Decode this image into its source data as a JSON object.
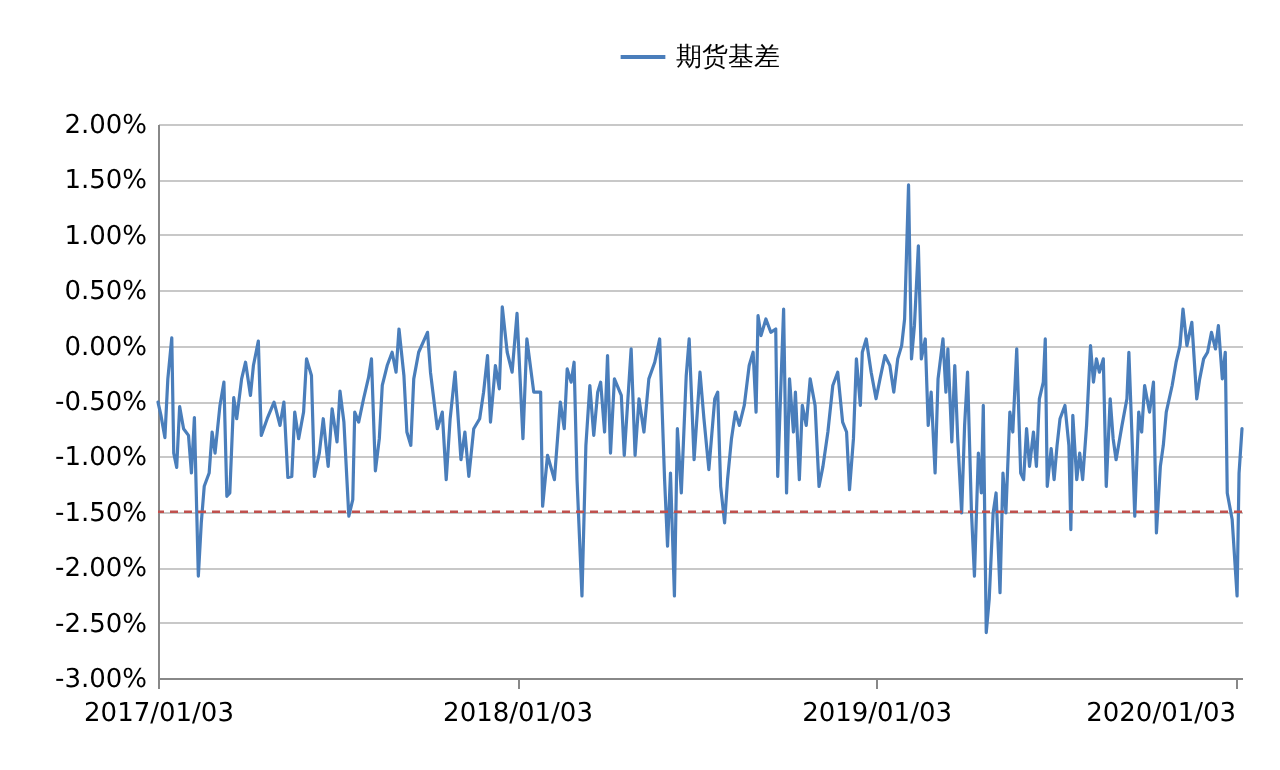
{
  "chart_data": {
    "type": "line",
    "x": [
      "2017-01-03",
      "2017-01-06",
      "2017-01-10",
      "2017-01-13",
      "2017-01-17",
      "2017-01-19",
      "2017-01-22",
      "2017-01-25",
      "2017-01-29",
      "2017-02-03",
      "2017-02-06",
      "2017-02-09",
      "2017-02-13",
      "2017-02-16",
      "2017-02-19",
      "2017-02-24",
      "2017-02-27",
      "2017-03-02",
      "2017-03-07",
      "2017-03-11",
      "2017-03-14",
      "2017-03-17",
      "2017-03-21",
      "2017-03-24",
      "2017-03-29",
      "2017-04-02",
      "2017-04-07",
      "2017-04-10",
      "2017-04-15",
      "2017-04-18",
      "2017-04-24",
      "2017-05-01",
      "2017-05-07",
      "2017-05-11",
      "2017-05-15",
      "2017-05-19",
      "2017-05-22",
      "2017-05-26",
      "2017-05-31",
      "2017-06-03",
      "2017-06-08",
      "2017-06-11",
      "2017-06-16",
      "2017-06-20",
      "2017-06-25",
      "2017-06-29",
      "2017-07-04",
      "2017-07-07",
      "2017-07-11",
      "2017-07-16",
      "2017-07-20",
      "2017-07-22",
      "2017-07-26",
      "2017-07-31",
      "2017-08-05",
      "2017-08-08",
      "2017-08-12",
      "2017-08-16",
      "2017-08-19",
      "2017-08-24",
      "2017-08-29",
      "2017-09-02",
      "2017-09-05",
      "2017-09-10",
      "2017-09-13",
      "2017-09-17",
      "2017-09-20",
      "2017-09-25",
      "2017-10-04",
      "2017-10-07",
      "2017-10-14",
      "2017-10-19",
      "2017-10-23",
      "2017-10-27",
      "2017-11-01",
      "2017-11-07",
      "2017-11-11",
      "2017-11-15",
      "2017-11-20",
      "2017-11-26",
      "2017-11-30",
      "2017-12-04",
      "2017-12-07",
      "2017-12-12",
      "2017-12-16",
      "2017-12-19",
      "2017-12-24",
      "2017-12-29",
      "2018-01-03",
      "2018-01-09",
      "2018-01-13",
      "2018-01-20",
      "2018-01-27",
      "2018-01-29",
      "2018-02-03",
      "2018-02-10",
      "2018-02-16",
      "2018-02-20",
      "2018-02-23",
      "2018-02-27",
      "2018-03-02",
      "2018-03-05",
      "2018-03-10",
      "2018-03-14",
      "2018-03-18",
      "2018-03-22",
      "2018-03-26",
      "2018-03-29",
      "2018-04-02",
      "2018-04-05",
      "2018-04-08",
      "2018-04-12",
      "2018-04-19",
      "2018-04-22",
      "2018-04-29",
      "2018-05-03",
      "2018-05-07",
      "2018-05-12",
      "2018-05-17",
      "2018-05-23",
      "2018-05-28",
      "2018-06-02",
      "2018-06-05",
      "2018-06-08",
      "2018-06-12",
      "2018-06-15",
      "2018-06-19",
      "2018-06-24",
      "2018-06-27",
      "2018-07-02",
      "2018-07-08",
      "2018-07-12",
      "2018-07-17",
      "2018-07-23",
      "2018-07-26",
      "2018-07-29",
      "2018-08-02",
      "2018-08-05",
      "2018-08-09",
      "2018-08-13",
      "2018-08-17",
      "2018-08-22",
      "2018-08-27",
      "2018-08-31",
      "2018-09-03",
      "2018-09-05",
      "2018-09-08",
      "2018-09-13",
      "2018-09-18",
      "2018-09-23",
      "2018-09-25",
      "2018-09-28",
      "2018-10-01",
      "2018-10-04",
      "2018-10-07",
      "2018-10-11",
      "2018-10-13",
      "2018-10-17",
      "2018-10-20",
      "2018-10-24",
      "2018-10-28",
      "2018-11-02",
      "2018-11-06",
      "2018-11-10",
      "2018-11-15",
      "2018-11-20",
      "2018-11-25",
      "2018-11-30",
      "2018-12-04",
      "2018-12-07",
      "2018-12-11",
      "2018-12-14",
      "2018-12-18",
      "2018-12-20",
      "2018-12-24",
      "2018-12-29",
      "2019-01-03",
      "2019-01-07",
      "2019-01-12",
      "2019-01-17",
      "2019-01-21",
      "2019-01-25",
      "2019-01-29",
      "2019-02-01",
      "2019-02-05",
      "2019-02-08",
      "2019-02-11",
      "2019-02-15",
      "2019-02-18",
      "2019-02-22",
      "2019-02-25",
      "2019-02-28",
      "2019-03-04",
      "2019-03-07",
      "2019-03-12",
      "2019-03-15",
      "2019-03-17",
      "2019-03-21",
      "2019-03-24",
      "2019-03-27",
      "2019-03-31",
      "2019-04-03",
      "2019-04-06",
      "2019-04-10",
      "2019-04-13",
      "2019-04-17",
      "2019-04-20",
      "2019-04-22",
      "2019-04-25",
      "2019-04-28",
      "2019-05-02",
      "2019-05-05",
      "2019-05-09",
      "2019-05-12",
      "2019-05-15",
      "2019-05-19",
      "2019-05-22",
      "2019-05-26",
      "2019-05-30",
      "2019-06-02",
      "2019-06-05",
      "2019-06-08",
      "2019-06-12",
      "2019-06-15",
      "2019-06-18",
      "2019-06-22",
      "2019-06-24",
      "2019-06-26",
      "2019-06-30",
      "2019-07-03",
      "2019-07-06",
      "2019-07-09",
      "2019-07-14",
      "2019-07-18",
      "2019-07-20",
      "2019-07-22",
      "2019-07-26",
      "2019-07-29",
      "2019-08-01",
      "2019-08-05",
      "2019-08-09",
      "2019-08-12",
      "2019-08-15",
      "2019-08-18",
      "2019-08-22",
      "2019-08-25",
      "2019-08-29",
      "2019-09-01",
      "2019-09-04",
      "2019-09-10",
      "2019-09-15",
      "2019-09-17",
      "2019-09-20",
      "2019-09-23",
      "2019-09-27",
      "2019-09-30",
      "2019-10-03",
      "2019-10-08",
      "2019-10-12",
      "2019-10-15",
      "2019-10-19",
      "2019-10-22",
      "2019-10-25",
      "2019-10-31",
      "2019-11-04",
      "2019-11-08",
      "2019-11-11",
      "2019-11-15",
      "2019-11-20",
      "2019-11-25",
      "2019-11-28",
      "2019-12-02",
      "2019-12-06",
      "2019-12-10",
      "2019-12-14",
      "2019-12-17",
      "2019-12-21",
      "2019-12-24",
      "2019-12-26",
      "2019-12-31",
      "2020-01-05",
      "2020-01-07",
      "2020-01-10"
    ],
    "series": [
      {
        "name": "期货基差",
        "color": "#4a7ebb",
        "values": [
          -0.51,
          -0.63,
          -0.83,
          -0.3,
          0.07,
          -0.97,
          -1.1,
          -0.55,
          -0.75,
          -0.81,
          -1.15,
          -0.65,
          -2.08,
          -1.6,
          -1.27,
          -1.15,
          -0.78,
          -0.97,
          -0.54,
          -0.33,
          -1.36,
          -1.33,
          -0.47,
          -0.66,
          -0.3,
          -0.15,
          -0.45,
          -0.18,
          0.04,
          -0.81,
          -0.66,
          -0.51,
          -0.72,
          -0.51,
          -1.19,
          -1.18,
          -0.6,
          -0.84,
          -0.6,
          -0.12,
          -0.27,
          -1.18,
          -0.97,
          -0.66,
          -1.09,
          -0.57,
          -0.87,
          -0.41,
          -0.69,
          -1.54,
          -1.39,
          -0.6,
          -0.69,
          -0.48,
          -0.29,
          -0.12,
          -1.13,
          -0.84,
          -0.36,
          -0.18,
          -0.06,
          -0.24,
          0.15,
          -0.27,
          -0.78,
          -0.9,
          -0.3,
          -0.06,
          0.12,
          -0.24,
          -0.75,
          -0.6,
          -1.21,
          -0.66,
          -0.24,
          -1.03,
          -0.78,
          -1.18,
          -0.75,
          -0.66,
          -0.42,
          -0.09,
          -0.69,
          -0.18,
          -0.39,
          0.35,
          -0.06,
          -0.24,
          0.29,
          -0.84,
          0.06,
          -0.42,
          -0.42,
          -1.45,
          -0.99,
          -1.21,
          -0.51,
          -0.75,
          -0.21,
          -0.33,
          -0.15,
          -1.21,
          -2.26,
          -0.9,
          -0.36,
          -0.81,
          -0.42,
          -0.33,
          -0.78,
          -0.09,
          -0.97,
          -0.3,
          -0.45,
          -0.99,
          -0.03,
          -0.99,
          -0.48,
          -0.78,
          -0.3,
          -0.15,
          0.06,
          -1.21,
          -1.81,
          -1.15,
          -2.26,
          -0.75,
          -1.33,
          -0.27,
          0.06,
          -1.03,
          -0.24,
          -0.66,
          -1.12,
          -0.48,
          -0.42,
          -1.27,
          -1.6,
          -1.21,
          -0.84,
          -0.6,
          -0.72,
          -0.54,
          -0.18,
          -0.06,
          -0.6,
          0.27,
          0.09,
          0.24,
          0.12,
          0.15,
          -1.18,
          -0.42,
          0.33,
          -1.33,
          -0.3,
          -0.78,
          -0.42,
          -1.21,
          -0.54,
          -0.72,
          -0.3,
          -0.54,
          -1.27,
          -1.09,
          -0.78,
          -0.36,
          -0.24,
          -0.69,
          -0.78,
          -1.3,
          -0.84,
          -0.12,
          -0.54,
          -0.06,
          0.06,
          -0.24,
          -0.48,
          -0.3,
          -0.09,
          -0.18,
          -0.42,
          -0.12,
          0.0,
          0.24,
          1.45,
          -0.12,
          0.18,
          0.9,
          -0.12,
          0.06,
          -0.72,
          -0.42,
          -1.15,
          -0.3,
          0.06,
          -0.42,
          -0.03,
          -0.87,
          -0.18,
          -0.84,
          -1.51,
          -0.72,
          -0.24,
          -1.51,
          -2.08,
          -0.97,
          -1.33,
          -0.54,
          -2.59,
          -2.29,
          -1.51,
          -1.33,
          -2.23,
          -1.15,
          -1.51,
          -0.6,
          -0.78,
          -0.03,
          -1.15,
          -1.21,
          -0.75,
          -1.09,
          -0.78,
          -1.09,
          -0.48,
          -0.33,
          0.06,
          -1.27,
          -0.93,
          -1.21,
          -0.9,
          -0.66,
          -0.54,
          -0.9,
          -1.66,
          -0.63,
          -1.21,
          -0.97,
          -1.21,
          -0.72,
          0.0,
          -0.33,
          -0.12,
          -0.24,
          -0.12,
          -1.27,
          -0.48,
          -0.84,
          -1.03,
          -0.72,
          -0.48,
          -0.06,
          -0.78,
          -1.54,
          -0.6,
          -0.78,
          -0.36,
          -0.6,
          -0.33,
          -1.69,
          -1.09,
          -0.9,
          -0.6,
          -0.36,
          -0.15,
          0.0,
          0.33,
          0.0,
          0.21,
          -0.48,
          -0.3,
          -0.12,
          -0.06,
          0.12,
          -0.03,
          0.18,
          -0.3,
          -0.06,
          -1.33,
          -1.57,
          -2.26,
          -1.15,
          -0.75
        ]
      }
    ],
    "xlim": [
      "2017-01-03",
      "2020-01-10"
    ],
    "xticks": [
      {
        "value": "2017-01-03",
        "label": "2017/01/03"
      },
      {
        "value": "2018-01-03",
        "label": "2018/01/03"
      },
      {
        "value": "2019-01-03",
        "label": "2019/01/03"
      },
      {
        "value": "2020-01-03",
        "label": "2020/01/03"
      }
    ],
    "ylim": [
      -3,
      2
    ],
    "yticks": [
      {
        "value": -3,
        "label": "-3.00%"
      },
      {
        "value": -2.5,
        "label": "-2.50%"
      },
      {
        "value": -2,
        "label": "-2.00%"
      },
      {
        "value": -1.5,
        "label": "-1.50%"
      },
      {
        "value": -1,
        "label": "-1.00%"
      },
      {
        "value": -0.5,
        "label": "-0.50%"
      },
      {
        "value": 0,
        "label": "0.00%"
      },
      {
        "value": 0.5,
        "label": "0.50%"
      },
      {
        "value": 1,
        "label": "1.00%"
      },
      {
        "value": 1.5,
        "label": "1.50%"
      },
      {
        "value": 2,
        "label": "2.00%"
      }
    ],
    "ref_lines": [
      {
        "axis": "y",
        "value": -1.5,
        "color": "#c0504d",
        "line_style": "dashed"
      }
    ],
    "grid": "y",
    "legend": "top"
  }
}
